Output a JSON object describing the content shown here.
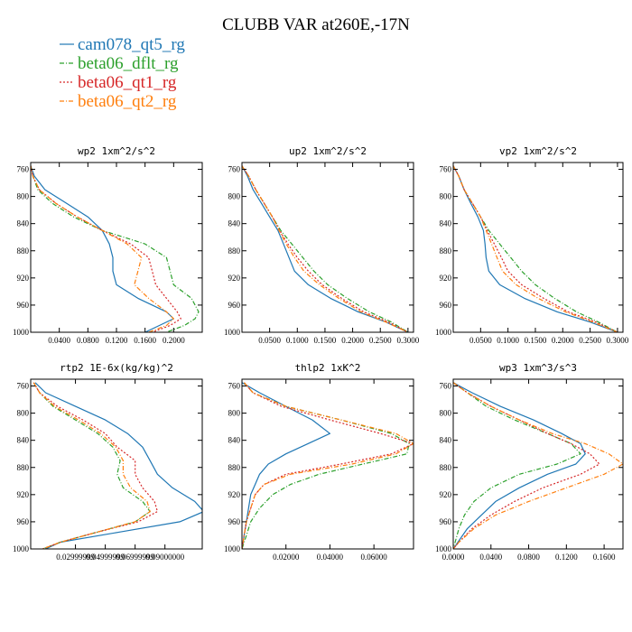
{
  "figure": {
    "title": "CLUBB VAR at260E,-17N",
    "legend": [
      {
        "name": "cam078_qt5_rg",
        "color": "#1f77b4",
        "dash": "solid"
      },
      {
        "name": "beta06_dflt_rg",
        "color": "#2ca02c",
        "dash": "dashdot"
      },
      {
        "name": "beta06_qt1_rg",
        "color": "#d62728",
        "dash": "dot"
      },
      {
        "name": "beta06_qt2_rg",
        "color": "#ff7f0e",
        "dash": "dashdot"
      }
    ]
  },
  "chart_data": [
    {
      "type": "line",
      "title": "wp2  1xm^2/s^2",
      "xlim": [
        0.0,
        0.24
      ],
      "ylim": [
        1000,
        750
      ],
      "y_ticks": [
        760,
        800,
        840,
        880,
        920,
        960,
        1000
      ],
      "x_ticks": [
        0.04,
        0.08,
        0.12,
        0.16,
        0.2
      ],
      "x_tick_labels": [
        "0.0400",
        "0.0800",
        "0.1200",
        "0.1600",
        "0.2000"
      ],
      "y": [
        755,
        770,
        790,
        810,
        830,
        850,
        870,
        890,
        910,
        930,
        950,
        970,
        980,
        990,
        1000
      ],
      "series": [
        {
          "name": "cam078_qt5_rg",
          "x": [
            0.0,
            0.005,
            0.02,
            0.05,
            0.08,
            0.1,
            0.11,
            0.115,
            0.115,
            0.12,
            0.15,
            0.19,
            0.2,
            0.18,
            0.16
          ]
        },
        {
          "name": "beta06_dflt_rg",
          "x": [
            0.0,
            0.003,
            0.01,
            0.03,
            0.06,
            0.1,
            0.16,
            0.19,
            0.195,
            0.2,
            0.225,
            0.235,
            0.23,
            0.215,
            0.19
          ]
        },
        {
          "name": "beta06_qt1_rg",
          "x": [
            0.0,
            0.003,
            0.012,
            0.035,
            0.065,
            0.1,
            0.14,
            0.165,
            0.17,
            0.175,
            0.19,
            0.205,
            0.21,
            0.195,
            0.17
          ]
        },
        {
          "name": "beta06_qt2_rg",
          "x": [
            0.0,
            0.003,
            0.012,
            0.035,
            0.065,
            0.1,
            0.135,
            0.155,
            0.15,
            0.145,
            0.165,
            0.19,
            0.2,
            0.19,
            0.165
          ]
        }
      ]
    },
    {
      "type": "line",
      "title": "up2  1xm^2/s^2",
      "xlim": [
        0.0,
        0.31
      ],
      "ylim": [
        1000,
        750
      ],
      "y_ticks": [
        760,
        800,
        840,
        880,
        920,
        960,
        1000
      ],
      "x_ticks": [
        0.05,
        0.1,
        0.15,
        0.2,
        0.25,
        0.3
      ],
      "x_tick_labels": [
        "0.0500",
        "0.1000",
        "0.1500",
        "0.2000",
        "0.2500",
        "0.3000"
      ],
      "y": [
        755,
        770,
        790,
        810,
        830,
        850,
        870,
        890,
        910,
        930,
        950,
        970,
        985,
        1000
      ],
      "series": [
        {
          "name": "cam078_qt5_rg",
          "x": [
            0.0,
            0.01,
            0.02,
            0.035,
            0.05,
            0.065,
            0.075,
            0.085,
            0.095,
            0.12,
            0.16,
            0.21,
            0.26,
            0.3
          ]
        },
        {
          "name": "beta06_dflt_rg",
          "x": [
            0.0,
            0.012,
            0.025,
            0.04,
            0.055,
            0.07,
            0.09,
            0.11,
            0.13,
            0.155,
            0.19,
            0.23,
            0.27,
            0.3
          ]
        },
        {
          "name": "beta06_qt1_rg",
          "x": [
            0.0,
            0.012,
            0.025,
            0.04,
            0.055,
            0.068,
            0.083,
            0.1,
            0.12,
            0.145,
            0.18,
            0.22,
            0.265,
            0.3
          ]
        },
        {
          "name": "beta06_qt2_rg",
          "x": [
            0.0,
            0.012,
            0.025,
            0.04,
            0.055,
            0.067,
            0.08,
            0.095,
            0.112,
            0.14,
            0.175,
            0.215,
            0.26,
            0.3
          ]
        }
      ]
    },
    {
      "type": "line",
      "title": "vp2  1xm^2/s^2",
      "xlim": [
        0.0,
        0.31
      ],
      "ylim": [
        1000,
        750
      ],
      "y_ticks": [
        760,
        800,
        840,
        880,
        920,
        960,
        1000
      ],
      "x_ticks": [
        0.05,
        0.1,
        0.15,
        0.2,
        0.25,
        0.3
      ],
      "x_tick_labels": [
        "0.0500",
        "0.1000",
        "0.1500",
        "0.2000",
        "0.2500",
        "0.3000"
      ],
      "y": [
        755,
        770,
        790,
        810,
        830,
        850,
        870,
        890,
        910,
        930,
        950,
        970,
        985,
        1000
      ],
      "series": [
        {
          "name": "cam078_qt5_rg",
          "x": [
            0.0,
            0.01,
            0.02,
            0.032,
            0.045,
            0.055,
            0.058,
            0.06,
            0.065,
            0.085,
            0.13,
            0.19,
            0.25,
            0.3
          ]
        },
        {
          "name": "beta06_dflt_rg",
          "x": [
            0.0,
            0.01,
            0.02,
            0.035,
            0.05,
            0.065,
            0.085,
            0.105,
            0.125,
            0.15,
            0.185,
            0.225,
            0.265,
            0.3
          ]
        },
        {
          "name": "beta06_qt1_rg",
          "x": [
            0.0,
            0.01,
            0.02,
            0.035,
            0.05,
            0.062,
            0.075,
            0.088,
            0.1,
            0.125,
            0.165,
            0.21,
            0.26,
            0.3
          ]
        },
        {
          "name": "beta06_qt2_rg",
          "x": [
            0.0,
            0.01,
            0.02,
            0.035,
            0.05,
            0.06,
            0.07,
            0.08,
            0.09,
            0.115,
            0.155,
            0.205,
            0.255,
            0.3
          ]
        }
      ]
    },
    {
      "type": "line",
      "title": "rtp2  1E-6x(kg/kg)^2",
      "xlim": [
        0.0,
        0.115
      ],
      "ylim": [
        1000,
        750
      ],
      "y_ticks": [
        760,
        800,
        840,
        880,
        920,
        960,
        1000
      ],
      "x_ticks": [
        0.03,
        0.05,
        0.07,
        0.09
      ],
      "x_tick_labels": [
        "0.02999999",
        "0.04999999",
        "0.06999999",
        "0.09000000"
      ],
      "y": [
        755,
        770,
        790,
        810,
        830,
        850,
        870,
        890,
        910,
        930,
        945,
        960,
        975,
        990,
        1000
      ],
      "series": [
        {
          "name": "cam078_qt5_rg",
          "x": [
            0.003,
            0.01,
            0.03,
            0.05,
            0.065,
            0.075,
            0.08,
            0.085,
            0.095,
            0.11,
            0.116,
            0.1,
            0.06,
            0.02,
            0.01
          ]
        },
        {
          "name": "beta06_dflt_rg",
          "x": [
            0.002,
            0.006,
            0.015,
            0.03,
            0.045,
            0.055,
            0.06,
            0.058,
            0.062,
            0.075,
            0.08,
            0.07,
            0.045,
            0.02,
            0.008
          ]
        },
        {
          "name": "beta06_qt1_rg",
          "x": [
            0.002,
            0.006,
            0.018,
            0.035,
            0.05,
            0.058,
            0.07,
            0.07,
            0.075,
            0.083,
            0.085,
            0.072,
            0.045,
            0.02,
            0.008
          ]
        },
        {
          "name": "beta06_qt2_rg",
          "x": [
            0.002,
            0.006,
            0.016,
            0.032,
            0.047,
            0.057,
            0.062,
            0.062,
            0.067,
            0.078,
            0.08,
            0.07,
            0.045,
            0.02,
            0.008
          ]
        }
      ]
    },
    {
      "type": "line",
      "title": "thlp2  1xK^2",
      "xlim": [
        0.0,
        0.078
      ],
      "ylim": [
        1000,
        750
      ],
      "y_ticks": [
        760,
        800,
        840,
        880,
        920,
        960,
        1000
      ],
      "x_ticks": [
        0.02,
        0.04,
        0.06
      ],
      "x_tick_labels": [
        "0.02000",
        "0.04000",
        "0.06000"
      ],
      "y": [
        755,
        770,
        790,
        810,
        830,
        845,
        860,
        875,
        890,
        905,
        920,
        940,
        960,
        980,
        1000
      ],
      "series": [
        {
          "name": "cam078_qt5_rg",
          "x": [
            0.0,
            0.008,
            0.02,
            0.032,
            0.04,
            0.03,
            0.02,
            0.012,
            0.008,
            0.006,
            0.004,
            0.003,
            0.002,
            0.001,
            0.0
          ]
        },
        {
          "name": "beta06_dflt_rg",
          "x": [
            0.001,
            0.005,
            0.02,
            0.045,
            0.068,
            0.076,
            0.075,
            0.055,
            0.035,
            0.022,
            0.014,
            0.008,
            0.004,
            0.002,
            0.0
          ]
        },
        {
          "name": "beta06_qt1_rg",
          "x": [
            0.001,
            0.005,
            0.018,
            0.04,
            0.063,
            0.078,
            0.068,
            0.045,
            0.02,
            0.01,
            0.006,
            0.004,
            0.002,
            0.001,
            0.0
          ]
        },
        {
          "name": "beta06_qt2_rg",
          "x": [
            0.001,
            0.005,
            0.02,
            0.045,
            0.07,
            0.078,
            0.07,
            0.05,
            0.022,
            0.01,
            0.006,
            0.004,
            0.002,
            0.001,
            0.0
          ]
        }
      ]
    },
    {
      "type": "line",
      "title": "wp3  1xm^3/s^3",
      "xlim": [
        0.0,
        0.18
      ],
      "ylim": [
        1000,
        750
      ],
      "y_ticks": [
        760,
        800,
        840,
        880,
        920,
        960,
        1000
      ],
      "x_ticks": [
        0.0,
        0.04,
        0.08,
        0.12,
        0.16
      ],
      "x_tick_labels": [
        "0.0000",
        "0.0400",
        "0.0800",
        "0.1200",
        "0.1600"
      ],
      "y": [
        755,
        770,
        790,
        810,
        830,
        845,
        860,
        875,
        890,
        910,
        930,
        950,
        970,
        990,
        1000
      ],
      "series": [
        {
          "name": "cam078_qt5_rg",
          "x": [
            0.0,
            0.02,
            0.05,
            0.085,
            0.115,
            0.135,
            0.14,
            0.13,
            0.1,
            0.07,
            0.045,
            0.03,
            0.015,
            0.005,
            0.0
          ]
        },
        {
          "name": "beta06_dflt_rg",
          "x": [
            0.0,
            0.015,
            0.035,
            0.065,
            0.1,
            0.125,
            0.135,
            0.11,
            0.07,
            0.04,
            0.022,
            0.012,
            0.006,
            0.002,
            0.0
          ]
        },
        {
          "name": "beta06_qt1_rg",
          "x": [
            0.0,
            0.015,
            0.04,
            0.07,
            0.1,
            0.125,
            0.145,
            0.155,
            0.135,
            0.095,
            0.065,
            0.04,
            0.02,
            0.006,
            0.0
          ]
        },
        {
          "name": "beta06_qt2_rg",
          "x": [
            0.0,
            0.015,
            0.04,
            0.07,
            0.105,
            0.14,
            0.165,
            0.18,
            0.16,
            0.12,
            0.08,
            0.045,
            0.022,
            0.006,
            0.0
          ]
        }
      ]
    }
  ]
}
